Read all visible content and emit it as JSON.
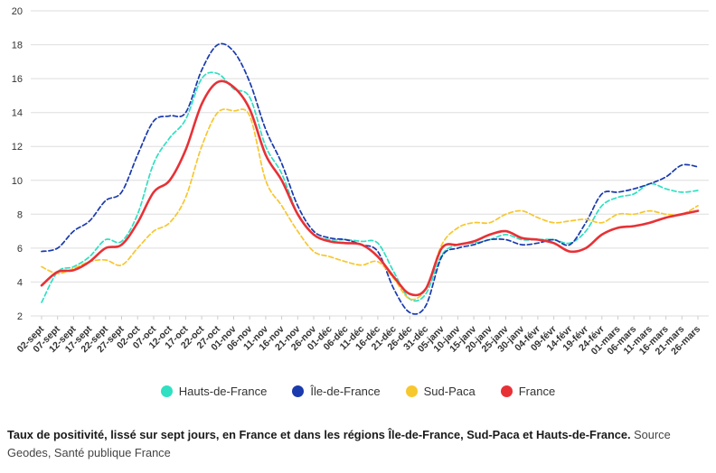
{
  "chart_data": {
    "type": "line",
    "title": "",
    "xlabel": "",
    "ylabel": "",
    "ylim": [
      2,
      20
    ],
    "yticks": [
      2,
      4,
      6,
      8,
      10,
      12,
      14,
      16,
      18,
      20
    ],
    "grid": true,
    "legend_position": "bottom",
    "categories": [
      "02-sept",
      "07-sept",
      "12-sept",
      "17-sept",
      "22-sept",
      "27-sept",
      "02-oct",
      "07-oct",
      "12-oct",
      "17-oct",
      "22-oct",
      "27-oct",
      "01-nov",
      "06-nov",
      "11-nov",
      "16-nov",
      "21-nov",
      "26-nov",
      "01-déc",
      "06-déc",
      "11-déc",
      "16-déc",
      "21-déc",
      "26-déc",
      "31-déc",
      "05-janv",
      "10-janv",
      "15-janv",
      "20-janv",
      "25-janv",
      "30-janv",
      "04-févr",
      "09-févr",
      "14-févr",
      "19-févr",
      "24-févr",
      "01-mars",
      "06-mars",
      "11-mars",
      "16-mars",
      "21-mars",
      "26-mars"
    ],
    "series": [
      {
        "name": "Hauts-de-France",
        "color": "#2fe0c2",
        "dash": true,
        "values": [
          2.8,
          4.6,
          4.9,
          5.5,
          6.5,
          6.4,
          8.0,
          11.0,
          12.5,
          13.6,
          16.0,
          16.3,
          15.4,
          14.9,
          12.0,
          10.4,
          8.0,
          6.8,
          6.5,
          6.5,
          6.4,
          6.3,
          4.6,
          3.0,
          3.3,
          5.6,
          6.2,
          6.3,
          6.5,
          6.8,
          6.5,
          6.5,
          6.5,
          6.3,
          7.0,
          8.5,
          9.0,
          9.2,
          9.8,
          9.5,
          9.3,
          9.4
        ]
      },
      {
        "name": "Île-de-France",
        "color": "#1a3aad",
        "dash": true,
        "values": [
          5.8,
          6.0,
          7.0,
          7.6,
          8.8,
          9.3,
          11.5,
          13.5,
          13.8,
          14.0,
          16.5,
          18.0,
          17.6,
          15.8,
          13.0,
          11.0,
          8.5,
          7.0,
          6.6,
          6.5,
          6.2,
          5.8,
          3.6,
          2.2,
          2.6,
          5.5,
          6.0,
          6.2,
          6.5,
          6.5,
          6.2,
          6.3,
          6.5,
          6.2,
          7.5,
          9.2,
          9.3,
          9.5,
          9.8,
          10.2,
          10.9,
          10.8
        ]
      },
      {
        "name": "Sud-Paca",
        "color": "#f7c72e",
        "dash": true,
        "values": [
          4.9,
          4.5,
          4.8,
          5.2,
          5.3,
          5.0,
          6.0,
          7.0,
          7.5,
          9.0,
          12.0,
          14.0,
          14.1,
          13.8,
          10.0,
          8.5,
          7.0,
          5.8,
          5.5,
          5.2,
          5.0,
          5.2,
          4.2,
          3.0,
          3.6,
          6.2,
          7.2,
          7.5,
          7.5,
          8.0,
          8.2,
          7.8,
          7.5,
          7.6,
          7.7,
          7.5,
          8.0,
          8.0,
          8.2,
          8.0,
          8.0,
          8.5
        ]
      },
      {
        "name": "France",
        "color": "#e73136",
        "dash": false,
        "values": [
          3.8,
          4.6,
          4.7,
          5.2,
          6.0,
          6.2,
          7.5,
          9.3,
          10.0,
          11.8,
          14.5,
          15.8,
          15.5,
          14.2,
          11.5,
          10.0,
          8.0,
          6.8,
          6.4,
          6.3,
          6.2,
          5.5,
          4.3,
          3.3,
          3.6,
          6.0,
          6.2,
          6.4,
          6.8,
          7.0,
          6.6,
          6.5,
          6.3,
          5.8,
          6.0,
          6.8,
          7.2,
          7.3,
          7.5,
          7.8,
          8.0,
          8.2
        ]
      }
    ]
  },
  "caption": {
    "bold": "Taux de positivité, lissé sur sept jours, en France et dans les régions Île-de-France, Sud-Paca et Hauts-de-France.",
    "source": " Source Geodes, Santé publique France"
  }
}
